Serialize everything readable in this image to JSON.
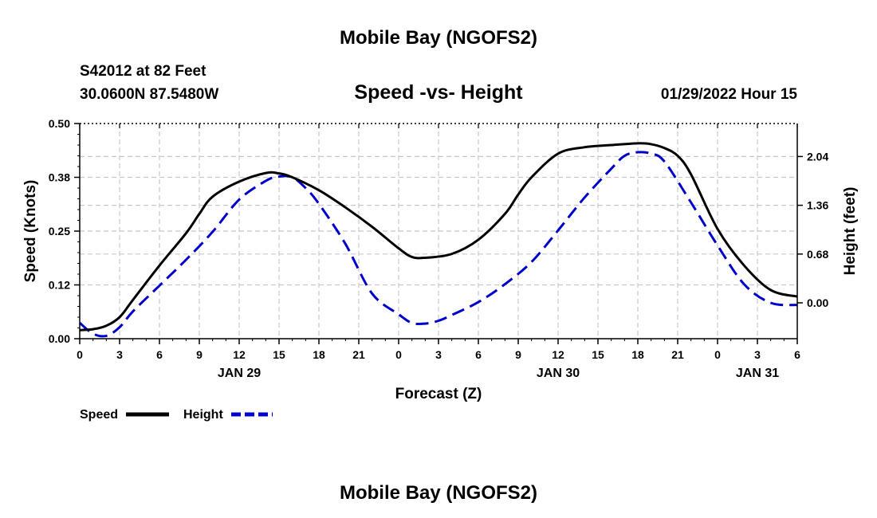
{
  "page_title": "Mobile Bay (NGOFS2)",
  "footer_title": "Mobile Bay (NGOFS2)",
  "station": {
    "line1": "S42012 at 82 Feet",
    "line2": "30.0600N  87.5480W"
  },
  "timestamp": "01/29/2022 Hour 15",
  "colors": {
    "speed": "#000000",
    "height": "#0000cc",
    "grid": "#c8c8c8"
  },
  "chart_data": {
    "type": "line",
    "title": "Speed -vs- Height",
    "xlabel": "Forecast (Z)",
    "ylabel_left": "Speed (Knots)",
    "ylabel_right": "Height (feet)",
    "x_unit": "hours",
    "xlim": [
      0,
      54
    ],
    "x_tick_values": [
      0,
      3,
      6,
      9,
      12,
      15,
      18,
      21,
      24,
      27,
      30,
      33,
      36,
      39,
      42,
      45,
      48,
      51,
      54
    ],
    "x_tick_labels": [
      "0",
      "3",
      "6",
      "9",
      "12",
      "15",
      "18",
      "21",
      "0",
      "3",
      "6",
      "9",
      "12",
      "15",
      "18",
      "21",
      "0",
      "3",
      "6"
    ],
    "date_labels": [
      {
        "x": 12,
        "label": "JAN 29"
      },
      {
        "x": 36,
        "label": "JAN 30"
      },
      {
        "x": 51,
        "label": "JAN 31"
      }
    ],
    "ylim_left": [
      0,
      0.5
    ],
    "y_left_ticks": [
      0,
      0.125,
      0.25,
      0.375,
      0.5
    ],
    "y_left_tick_labels": [
      "0.00",
      "0.12",
      "0.25",
      "0.38",
      "0.50"
    ],
    "ylim_right": [
      -0.5,
      2.5
    ],
    "y_right_ticks": [
      0,
      0.68,
      1.36,
      2.04
    ],
    "y_right_tick_labels": [
      "0.00",
      "0.68",
      "1.36",
      "2.04"
    ],
    "grid": true,
    "legend_position": "bottom-left",
    "series": [
      {
        "name": "Speed",
        "axis": "left",
        "style": "solid",
        "x": [
          0,
          1,
          2,
          3,
          4,
          6,
          8,
          9,
          10,
          12,
          14,
          15,
          16,
          18,
          20,
          22,
          24,
          25,
          26,
          28,
          30,
          32,
          33,
          34,
          36,
          38,
          40,
          42,
          43,
          44,
          45,
          46,
          48,
          50,
          52,
          54
        ],
        "y": [
          0.02,
          0.022,
          0.03,
          0.05,
          0.09,
          0.17,
          0.245,
          0.29,
          0.33,
          0.365,
          0.385,
          0.384,
          0.375,
          0.345,
          0.305,
          0.26,
          0.21,
          0.19,
          0.188,
          0.197,
          0.23,
          0.29,
          0.335,
          0.375,
          0.43,
          0.445,
          0.45,
          0.454,
          0.452,
          0.443,
          0.425,
          0.382,
          0.255,
          0.17,
          0.113,
          0.098
        ]
      },
      {
        "name": "Height",
        "axis": "right",
        "style": "dashed",
        "x": [
          0,
          1,
          2,
          3,
          4,
          6,
          8,
          10,
          12,
          14,
          15,
          16,
          17,
          18,
          20,
          22,
          24,
          25,
          26,
          27,
          28,
          30,
          32,
          34,
          36,
          38,
          40,
          41,
          42,
          43,
          44,
          46,
          48,
          50,
          52,
          54
        ],
        "y": [
          -0.28,
          -0.43,
          -0.46,
          -0.34,
          -0.12,
          0.24,
          0.6,
          0.99,
          1.44,
          1.7,
          1.76,
          1.75,
          1.6,
          1.38,
          0.82,
          0.13,
          -0.16,
          -0.28,
          -0.29,
          -0.25,
          -0.17,
          0.01,
          0.26,
          0.57,
          1.01,
          1.47,
          1.87,
          2.05,
          2.1,
          2.08,
          1.97,
          1.4,
          0.8,
          0.26,
          0.0,
          -0.03
        ]
      }
    ]
  },
  "legend": {
    "speed_label": "Speed",
    "height_label": "Height"
  }
}
